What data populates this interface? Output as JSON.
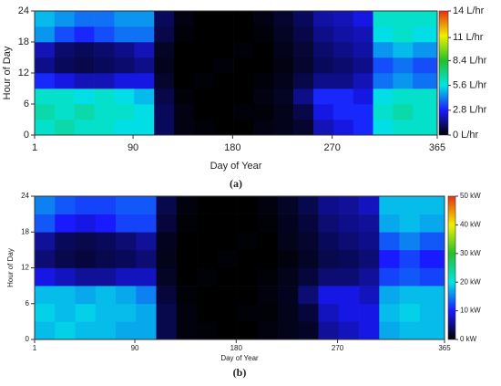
{
  "chart_data": [
    {
      "type": "heatmap",
      "caption": "(a)",
      "xlabel": "Day of Year",
      "ylabel": "Hour of Day",
      "xlim": [
        1,
        365
      ],
      "xticks": [
        1,
        90,
        180,
        270,
        365
      ],
      "ylim": [
        0,
        24
      ],
      "yticks": [
        0,
        6,
        12,
        18,
        24
      ],
      "x_edges": [
        1,
        19,
        37,
        55,
        73,
        91,
        109,
        127,
        145,
        163,
        181,
        199,
        217,
        235,
        253,
        271,
        289,
        307,
        325,
        343,
        365
      ],
      "y_edges": [
        0,
        3,
        6,
        9,
        12,
        15,
        18,
        21,
        24
      ],
      "zlim": [
        0,
        14
      ],
      "zticks": [
        {
          "value": 0,
          "label": "0 L/hr"
        },
        {
          "value": 2.8,
          "label": "2.8 L/hr"
        },
        {
          "value": 5.6,
          "label": "5.6 L/hr"
        },
        {
          "value": 8.4,
          "label": "8.4 L/hr"
        },
        {
          "value": 11,
          "label": "11 L/hr"
        },
        {
          "value": 14,
          "label": "14 L/hr"
        }
      ],
      "colors": [
        "#000000",
        "#1a1aff",
        "#00e5e5",
        "#22c02c",
        "#f0f000",
        "#e83010"
      ],
      "z": [
        [
          6,
          6.5,
          6,
          6,
          5.5,
          5.5,
          1,
          0.2,
          0.1,
          0,
          0,
          0.2,
          0.3,
          0.5,
          2,
          2.5,
          3,
          5.5,
          6,
          6
        ],
        [
          6.5,
          6,
          6.5,
          6,
          6,
          5.5,
          1,
          0.2,
          0,
          0,
          0.1,
          0.1,
          0.3,
          0.8,
          2.5,
          3,
          3,
          6,
          6.5,
          6
        ],
        [
          6,
          6,
          5.5,
          6,
          5.5,
          5,
          0.8,
          0.1,
          0,
          0,
          0,
          0.2,
          0.4,
          1.5,
          3,
          3,
          2.5,
          5.5,
          6,
          6
        ],
        [
          3,
          2.5,
          2,
          2,
          2.5,
          2.5,
          0.5,
          0,
          0.1,
          0,
          0,
          0.1,
          0.3,
          0.8,
          1.5,
          1.5,
          2,
          4,
          4.5,
          4
        ],
        [
          1.5,
          1,
          0.8,
          1,
          1.2,
          1.5,
          0.3,
          0,
          0,
          0.1,
          0,
          0,
          0.2,
          0.5,
          1,
          1.2,
          1.5,
          3.5,
          4,
          3.5
        ],
        [
          2,
          1.2,
          1,
          1.2,
          1.5,
          2,
          0.4,
          0,
          0,
          0,
          0.1,
          0,
          0.3,
          0.6,
          1.2,
          1.5,
          1.8,
          4.5,
          5,
          4.5
        ],
        [
          4.5,
          3.5,
          3,
          3.5,
          4,
          4,
          0.8,
          0.1,
          0,
          0,
          0,
          0.1,
          0.4,
          0.8,
          1.5,
          1.8,
          2,
          5.5,
          6,
          5.5
        ],
        [
          5,
          4.5,
          4,
          4,
          4.5,
          4.5,
          1,
          0.2,
          0,
          0,
          0,
          0.2,
          0.5,
          1,
          1.8,
          2,
          2.5,
          6,
          6,
          6
        ]
      ]
    },
    {
      "type": "heatmap",
      "caption": "(b)",
      "xlabel": "Day of Year",
      "ylabel": "Hour of Day",
      "xlim": [
        1,
        365
      ],
      "xticks": [
        1,
        90,
        180,
        270,
        365
      ],
      "ylim": [
        0,
        24
      ],
      "yticks": [
        0,
        6,
        12,
        18,
        24
      ],
      "x_edges": [
        1,
        19,
        37,
        55,
        73,
        91,
        109,
        127,
        145,
        163,
        181,
        199,
        217,
        235,
        253,
        271,
        289,
        307,
        325,
        343,
        365
      ],
      "y_edges": [
        0,
        3,
        6,
        9,
        12,
        15,
        18,
        21,
        24
      ],
      "zlim": [
        0,
        50
      ],
      "zticks": [
        {
          "value": 0,
          "label": "0 kW"
        },
        {
          "value": 10,
          "label": "10 kW"
        },
        {
          "value": 20,
          "label": "20 kW"
        },
        {
          "value": 30,
          "label": "30 kW"
        },
        {
          "value": 40,
          "label": "40 kW"
        },
        {
          "value": 50,
          "label": "50 kW"
        }
      ],
      "colors": [
        "#000000",
        "#1a1aff",
        "#00e5e5",
        "#22c02c",
        "#f0f000",
        "#e83010"
      ],
      "z": [
        [
          18,
          19,
          18,
          18,
          17,
          17,
          3,
          0.6,
          0.3,
          0,
          0,
          0.6,
          1,
          1.5,
          6,
          7.5,
          9,
          17,
          18,
          18
        ],
        [
          19,
          18,
          19,
          18,
          18,
          17,
          3,
          0.6,
          0,
          0,
          0.3,
          0.3,
          1,
          2.4,
          7.5,
          9,
          9,
          18,
          19,
          18
        ],
        [
          18,
          18,
          17,
          18,
          17,
          15,
          2.4,
          0.3,
          0,
          0,
          0,
          0.6,
          1.2,
          4.5,
          9,
          9,
          7.5,
          17,
          18,
          18
        ],
        [
          9,
          7.5,
          6,
          6,
          7.5,
          7.5,
          1.5,
          0,
          0.3,
          0,
          0,
          0.3,
          1,
          2.4,
          4.5,
          4.5,
          6,
          12,
          13,
          12
        ],
        [
          4.5,
          3,
          2.4,
          3,
          3.6,
          4.5,
          1,
          0,
          0,
          0.3,
          0,
          0,
          0.6,
          1.5,
          3,
          3.6,
          4.5,
          10,
          12,
          10
        ],
        [
          6,
          3.6,
          3,
          3.6,
          4.5,
          6,
          1.2,
          0,
          0,
          0,
          0.3,
          0,
          1,
          1.8,
          3.6,
          4.5,
          5.4,
          13,
          15,
          13
        ],
        [
          13,
          10,
          9,
          10,
          12,
          12,
          2.4,
          0.3,
          0,
          0,
          0,
          0.3,
          1.2,
          2.4,
          4.5,
          5.4,
          6,
          17,
          18,
          17
        ],
        [
          15,
          13,
          12,
          12,
          13,
          13,
          3,
          0.6,
          0,
          0,
          0,
          0.6,
          1.5,
          3,
          5.4,
          6,
          7.5,
          18,
          18,
          18
        ]
      ]
    }
  ]
}
